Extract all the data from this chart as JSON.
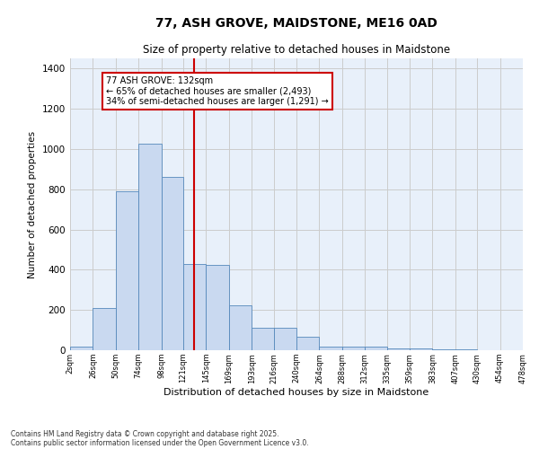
{
  "title1": "77, ASH GROVE, MAIDSTONE, ME16 0AD",
  "title2": "Size of property relative to detached houses in Maidstone",
  "xlabel": "Distribution of detached houses by size in Maidstone",
  "ylabel": "Number of detached properties",
  "annotation_line1": "77 ASH GROVE: 132sqm",
  "annotation_line2": "← 65% of detached houses are smaller (2,493)",
  "annotation_line3": "34% of semi-detached houses are larger (1,291) →",
  "property_size_sqm": 132,
  "bin_edges": [
    2,
    26,
    50,
    74,
    98,
    121,
    145,
    169,
    193,
    216,
    240,
    264,
    288,
    312,
    335,
    359,
    383,
    407,
    430,
    454,
    478
  ],
  "bar_heights": [
    20,
    210,
    790,
    1025,
    860,
    430,
    425,
    225,
    110,
    110,
    65,
    20,
    20,
    20,
    10,
    10,
    5,
    5,
    0,
    0
  ],
  "bar_color": "#c9d9f0",
  "bar_edge_color": "#5588bb",
  "vline_color": "#cc0000",
  "vline_x": 132,
  "ylim": [
    0,
    1450
  ],
  "yticks": [
    0,
    200,
    400,
    600,
    800,
    1000,
    1200,
    1400
  ],
  "grid_color": "#cccccc",
  "bg_color": "#e8f0fa",
  "footnote1": "Contains HM Land Registry data © Crown copyright and database right 2025.",
  "footnote2": "Contains public sector information licensed under the Open Government Licence v3.0."
}
